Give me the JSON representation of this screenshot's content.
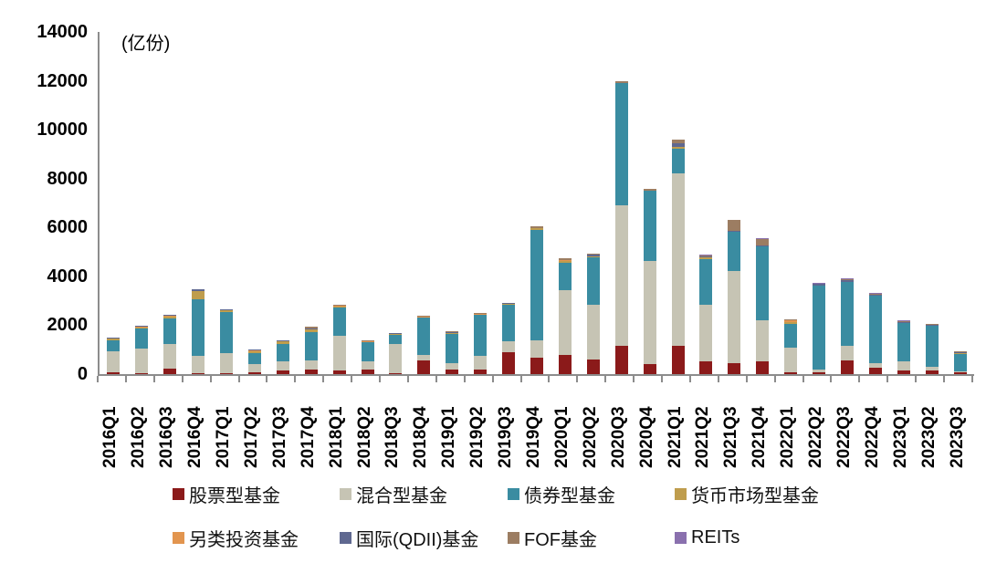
{
  "unit_label": "(亿份)",
  "y_axis": {
    "tick_labels": [
      "14000",
      "12000",
      "10000",
      "8000",
      "6000",
      "4000",
      "2000",
      "0"
    ],
    "max": 14000,
    "min": 0,
    "step": 2000
  },
  "chart_data": {
    "type": "bar",
    "stacked": true,
    "title": "",
    "xlabel": "",
    "ylabel": "(亿份)",
    "ylim": [
      0,
      14000
    ],
    "grid": false,
    "legend_position": "bottom",
    "categories": [
      "2016Q1",
      "2016Q2",
      "2016Q3",
      "2016Q4",
      "2017Q1",
      "2017Q2",
      "2017Q3",
      "2017Q4",
      "2018Q1",
      "2018Q2",
      "2018Q3",
      "2018Q4",
      "2019Q1",
      "2019Q2",
      "2019Q3",
      "2019Q4",
      "2020Q1",
      "2020Q2",
      "2020Q3",
      "2020Q4",
      "2021Q1",
      "2021Q2",
      "2021Q3",
      "2021Q4",
      "2022Q1",
      "2022Q2",
      "2022Q3",
      "2022Q4",
      "2023Q1",
      "2023Q2",
      "2023Q3"
    ],
    "series": [
      {
        "name": "股票型基金",
        "color": "#8B1A1A",
        "values": [
          60,
          30,
          220,
          30,
          40,
          60,
          150,
          190,
          160,
          200,
          30,
          560,
          175,
          190,
          900,
          690,
          770,
          600,
          1150,
          400,
          1150,
          520,
          460,
          520,
          80,
          60,
          560,
          250,
          150,
          150,
          60
        ]
      },
      {
        "name": "混合型基金",
        "color": "#C6C4B4",
        "values": [
          880,
          1030,
          1000,
          720,
          810,
          340,
          370,
          380,
          1420,
          335,
          1190,
          210,
          275,
          560,
          430,
          700,
          2650,
          2250,
          5750,
          4230,
          7050,
          2320,
          3750,
          1700,
          1020,
          130,
          590,
          200,
          385,
          160,
          70
        ]
      },
      {
        "name": "债券型基金",
        "color": "#3A8CA1",
        "values": [
          450,
          810,
          1050,
          2300,
          1700,
          450,
          700,
          1150,
          1160,
          760,
          400,
          1530,
          1200,
          1660,
          1500,
          4520,
          1130,
          1930,
          5000,
          2860,
          1040,
          1870,
          1620,
          2990,
          940,
          3420,
          2620,
          2750,
          1560,
          1660,
          690
        ]
      },
      {
        "name": "货币市场型基金",
        "color": "#BF9D4D",
        "values": [
          60,
          50,
          90,
          340,
          60,
          90,
          120,
          100,
          30,
          30,
          20,
          30,
          30,
          30,
          40,
          50,
          90,
          40,
          0,
          0,
          50,
          60,
          0,
          0,
          100,
          0,
          0,
          0,
          0,
          0,
          40
        ]
      },
      {
        "name": "另类投资基金",
        "color": "#E2954F",
        "values": [
          20,
          20,
          20,
          20,
          20,
          30,
          20,
          20,
          20,
          10,
          10,
          10,
          10,
          10,
          10,
          10,
          20,
          10,
          0,
          0,
          0,
          10,
          10,
          10,
          50,
          10,
          10,
          10,
          10,
          10,
          10
        ]
      },
      {
        "name": "国际(QDII)基金",
        "color": "#5F6890",
        "values": [
          30,
          40,
          40,
          60,
          40,
          40,
          40,
          30,
          30,
          25,
          20,
          20,
          25,
          20,
          20,
          20,
          20,
          80,
          0,
          20,
          150,
          40,
          20,
          30,
          20,
          60,
          50,
          40,
          40,
          40,
          20
        ]
      },
      {
        "name": "FOF基金",
        "color": "#9C7D62",
        "values": [
          0,
          0,
          0,
          0,
          0,
          0,
          0,
          60,
          30,
          20,
          20,
          20,
          25,
          20,
          20,
          60,
          60,
          20,
          100,
          60,
          150,
          40,
          450,
          270,
          30,
          20,
          40,
          20,
          30,
          20,
          60
        ]
      },
      {
        "name": "REITs",
        "color": "#8A70AE",
        "values": [
          0,
          0,
          0,
          0,
          0,
          0,
          0,
          0,
          0,
          0,
          0,
          0,
          0,
          0,
          0,
          0,
          0,
          0,
          0,
          0,
          0,
          30,
          0,
          30,
          0,
          50,
          40,
          40,
          40,
          30,
          0
        ]
      }
    ],
    "legend_rows": [
      [
        0,
        1,
        2,
        3
      ],
      [
        4,
        5,
        6,
        7
      ]
    ]
  },
  "layout_colors": {
    "axis_line": "#8c8c8c",
    "background": "#ffffff",
    "text": "#000000"
  }
}
